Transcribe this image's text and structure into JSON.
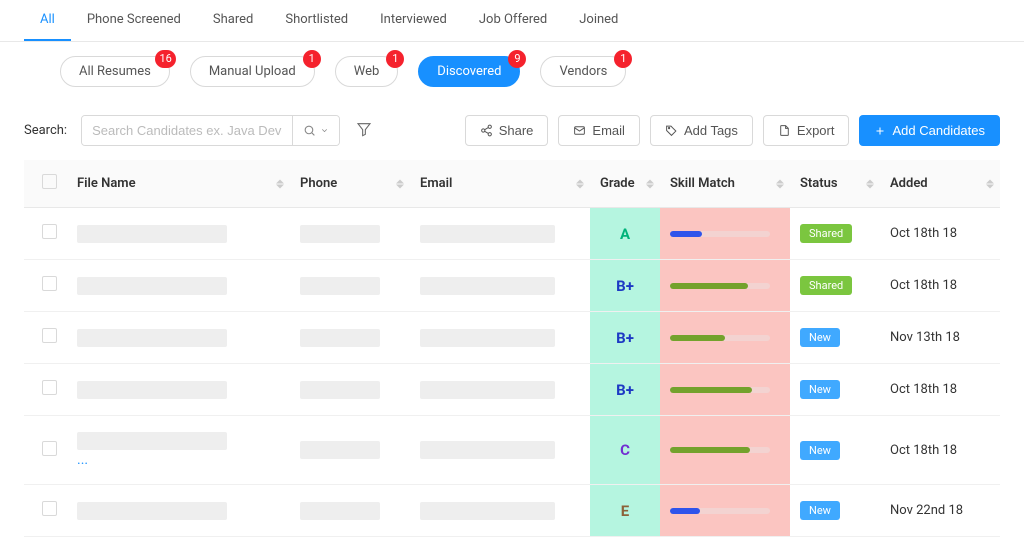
{
  "colors": {
    "primary": "#1890ff",
    "badge": "#f5222d",
    "grade_bg": "#b5f5e0",
    "skill_bg": "#fbc5c1",
    "status_shared": "#7bc63f",
    "status_new": "#40a9ff",
    "skill_blue": "#2f54eb",
    "skill_green": "#73a22c"
  },
  "tabs": [
    {
      "label": "All",
      "active": true
    },
    {
      "label": "Phone Screened",
      "active": false
    },
    {
      "label": "Shared",
      "active": false
    },
    {
      "label": "Shortlisted",
      "active": false
    },
    {
      "label": "Interviewed",
      "active": false
    },
    {
      "label": "Job Offered",
      "active": false
    },
    {
      "label": "Joined",
      "active": false
    }
  ],
  "pills": [
    {
      "label": "All Resumes",
      "count": 16,
      "active": false
    },
    {
      "label": "Manual Upload",
      "count": 1,
      "active": false
    },
    {
      "label": "Web",
      "count": 1,
      "active": false
    },
    {
      "label": "Discovered",
      "count": 9,
      "active": true
    },
    {
      "label": "Vendors",
      "count": 1,
      "active": false
    }
  ],
  "search": {
    "label": "Search:",
    "placeholder": "Search Candidates ex. Java Develop"
  },
  "actions": {
    "share": "Share",
    "email": "Email",
    "add_tags": "Add Tags",
    "export": "Export",
    "add_candidates": "Add Candidates"
  },
  "columns": {
    "file_name": "File Name",
    "phone": "Phone",
    "email": "Email",
    "grade": "Grade",
    "skill_match": "Skill Match",
    "status": "Status",
    "added": "Added"
  },
  "rows": [
    {
      "grade": "A",
      "grade_color": "#00b37a",
      "skill_pct": 32,
      "skill_color": "#2f54eb",
      "status": "Shared",
      "status_color": "#7bc63f",
      "added": "Oct 18th 18",
      "ellipsis": false
    },
    {
      "grade": "B+",
      "grade_color": "#1d39c4",
      "skill_pct": 78,
      "skill_color": "#73a22c",
      "status": "Shared",
      "status_color": "#7bc63f",
      "added": "Oct 18th 18",
      "ellipsis": false
    },
    {
      "grade": "B+",
      "grade_color": "#1d39c4",
      "skill_pct": 55,
      "skill_color": "#73a22c",
      "status": "New",
      "status_color": "#40a9ff",
      "added": "Nov 13th 18",
      "ellipsis": false
    },
    {
      "grade": "B+",
      "grade_color": "#1d39c4",
      "skill_pct": 82,
      "skill_color": "#73a22c",
      "status": "New",
      "status_color": "#40a9ff",
      "added": "Oct 18th 18",
      "ellipsis": false
    },
    {
      "grade": "C",
      "grade_color": "#722ed1",
      "skill_pct": 80,
      "skill_color": "#73a22c",
      "status": "New",
      "status_color": "#40a9ff",
      "added": "Oct 18th 18",
      "ellipsis": true
    },
    {
      "grade": "E",
      "grade_color": "#8c6239",
      "skill_pct": 30,
      "skill_color": "#2f54eb",
      "status": "New",
      "status_color": "#40a9ff",
      "added": "Nov 22nd 18",
      "ellipsis": false
    }
  ]
}
